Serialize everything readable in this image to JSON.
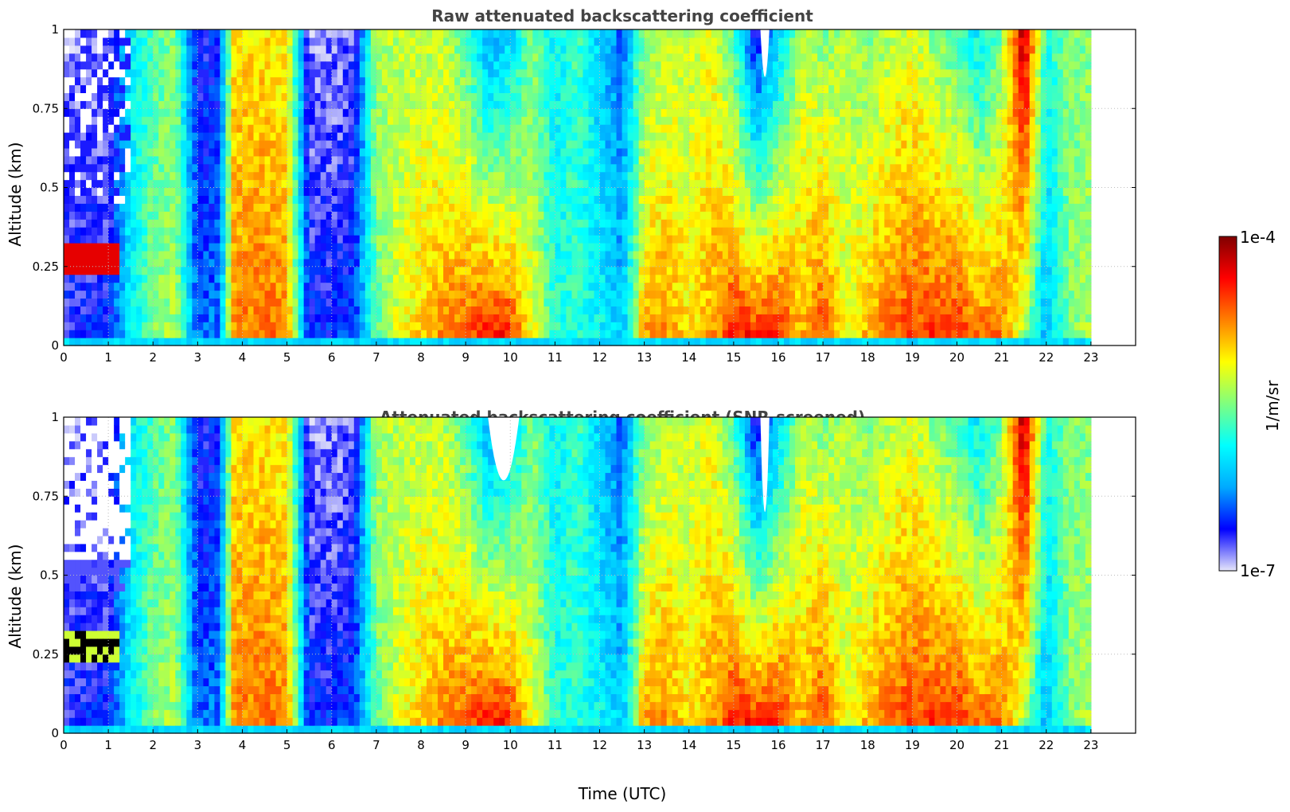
{
  "colors": {
    "background": "#ffffff",
    "gridline": "#bbbbbb",
    "no_data": "#ffffff",
    "screened_black": "#000000"
  },
  "colormap": {
    "name": "jet",
    "stops": [
      "#e6e6fa",
      "#0000ff",
      "#00aaff",
      "#00ffff",
      "#7fff7f",
      "#ffff00",
      "#ff8000",
      "#ff0000",
      "#800000"
    ]
  },
  "chart_data": [
    {
      "type": "heatmap",
      "title": "Raw attenuated backscattering coefficient",
      "xlabel": "",
      "ylabel": "Altitude (km)",
      "xlim": [
        0,
        24
      ],
      "ylim": [
        0,
        1
      ],
      "xticks": [
        "0",
        "1",
        "2",
        "3",
        "4",
        "5",
        "6",
        "7",
        "8",
        "9",
        "10",
        "11",
        "12",
        "13",
        "14",
        "15",
        "16",
        "17",
        "18",
        "19",
        "20",
        "21",
        "22",
        "23"
      ],
      "yticks": [
        "0",
        "0.25",
        "0.5",
        "0.75",
        "1"
      ],
      "grid": true,
      "data_end_hour": 23,
      "screened": false
    },
    {
      "type": "heatmap",
      "title": "Attenuated backscattering coefficient (SNR-screened)",
      "xlabel": "Time (UTC)",
      "ylabel": "Altitude (km)",
      "xlim": [
        0,
        24
      ],
      "ylim": [
        0,
        1
      ],
      "xticks": [
        "0",
        "1",
        "2",
        "3",
        "4",
        "5",
        "6",
        "7",
        "8",
        "9",
        "10",
        "11",
        "12",
        "13",
        "14",
        "15",
        "16",
        "17",
        "18",
        "19",
        "20",
        "21",
        "22",
        "23"
      ],
      "yticks": [
        "0",
        "0.25",
        "0.5",
        "0.75",
        "1"
      ],
      "grid": true,
      "data_end_hour": 23,
      "screened": true
    }
  ],
  "colorbar": {
    "label": "1/m/sr",
    "max_label": "1e-4",
    "min_label": "1e-7",
    "scale": "log",
    "range": [
      1e-07,
      0.0001
    ]
  },
  "column_profile": {
    "description_hours": [
      0,
      0.5,
      1,
      1.5,
      2,
      2.5,
      3,
      3.5,
      3.8,
      4.5,
      5,
      5.5,
      6,
      6.5,
      7,
      7.5,
      8,
      8.5,
      9,
      9.5,
      10,
      10.5,
      11,
      11.5,
      12,
      12.5,
      13,
      13.5,
      14,
      14.5,
      15,
      15.5,
      16,
      16.5,
      17,
      17.5,
      18,
      18.5,
      19,
      19.5,
      20,
      20.5,
      21,
      21.5,
      22,
      22.5,
      23
    ],
    "surface_intensity": [
      0.12,
      0.14,
      0.15,
      0.35,
      0.5,
      0.55,
      0.2,
      0.22,
      0.75,
      0.78,
      0.75,
      0.15,
      0.15,
      0.18,
      0.45,
      0.6,
      0.68,
      0.75,
      0.82,
      0.9,
      0.88,
      0.62,
      0.42,
      0.4,
      0.38,
      0.3,
      0.72,
      0.75,
      0.65,
      0.72,
      0.88,
      0.9,
      0.9,
      0.7,
      0.85,
      0.6,
      0.72,
      0.8,
      0.82,
      0.85,
      0.86,
      0.8,
      0.78,
      0.5,
      0.25,
      0.5,
      0.55
    ],
    "top_intensity": [
      0.05,
      0.05,
      0.05,
      0.35,
      0.45,
      0.5,
      0.1,
      0.15,
      0.65,
      0.65,
      0.62,
      0.05,
      0.05,
      0.08,
      0.55,
      0.55,
      0.55,
      0.55,
      0.45,
      0.25,
      0.3,
      0.5,
      0.35,
      0.45,
      0.3,
      0.2,
      0.5,
      0.55,
      0.55,
      0.6,
      0.45,
      0.1,
      0.3,
      0.55,
      0.5,
      0.55,
      0.5,
      0.55,
      0.6,
      0.5,
      0.45,
      0.35,
      0.5,
      0.95,
      0.4,
      0.5,
      0.5
    ]
  }
}
